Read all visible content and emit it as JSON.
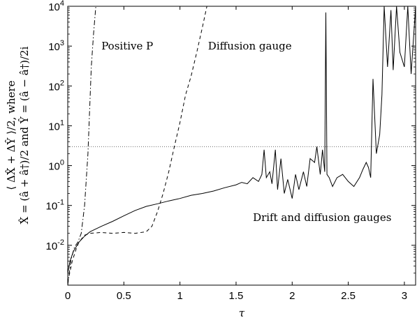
{
  "chart_data": {
    "type": "line",
    "title": "",
    "xlabel": "τ",
    "ylabel_line1": "⟨ ΔX̂ + ΔŶ ⟩/2, where",
    "ylabel_line2": "X̂ = (â + â†)/2 and Ŷ = (â − â†)/2i",
    "xlim": [
      0,
      3.1
    ],
    "ylim_log10": [
      -3,
      4
    ],
    "yscale": "log",
    "grid": false,
    "x_ticks": [
      {
        "value": 0,
        "label": "0"
      },
      {
        "value": 0.5,
        "label": "0.5"
      },
      {
        "value": 1,
        "label": "1"
      },
      {
        "value": 1.5,
        "label": "1.5"
      },
      {
        "value": 2,
        "label": "2"
      },
      {
        "value": 2.5,
        "label": "2.5"
      },
      {
        "value": 3,
        "label": "3"
      }
    ],
    "y_ticks": [
      {
        "exp": -2,
        "label_base": "10",
        "label_exp": "-2"
      },
      {
        "exp": -1,
        "label_base": "10",
        "label_exp": "-1"
      },
      {
        "exp": 0,
        "label_base": "10",
        "label_exp": "0"
      },
      {
        "exp": 1,
        "label_base": "10",
        "label_exp": "1"
      },
      {
        "exp": 2,
        "label_base": "10",
        "label_exp": "2"
      },
      {
        "exp": 3,
        "label_base": "10",
        "label_exp": "3"
      },
      {
        "exp": 4,
        "label_base": "10",
        "label_exp": "4"
      }
    ],
    "reference_line": {
      "y": 3,
      "style": "dotted"
    },
    "annotations": [
      {
        "text": "Positive P",
        "x": 0.3,
        "y": 1000
      },
      {
        "text": "Diffusion gauge",
        "x": 1.25,
        "y": 1000
      },
      {
        "text": "Drift and diffusion gauges",
        "x": 1.65,
        "y": 0.05
      }
    ],
    "series": [
      {
        "style": "dashdot",
        "x": [
          0.0,
          0.03,
          0.06,
          0.09,
          0.12,
          0.15,
          0.18,
          0.21,
          0.23,
          0.25
        ],
        "y": [
          0.001,
          0.0045,
          0.009,
          0.012,
          0.02,
          0.1,
          2,
          300,
          2000,
          10000
        ]
      },
      {
        "style": "dashed",
        "x": [
          0.0,
          0.04,
          0.08,
          0.1,
          0.15,
          0.2,
          0.3,
          0.4,
          0.5,
          0.6,
          0.7,
          0.75,
          0.8,
          0.85,
          0.9,
          0.95,
          1.0,
          1.05,
          1.1,
          1.15,
          1.2,
          1.24
        ],
        "y": [
          0.0012,
          0.004,
          0.009,
          0.012,
          0.018,
          0.02,
          0.021,
          0.02,
          0.021,
          0.02,
          0.022,
          0.03,
          0.07,
          0.2,
          0.7,
          3,
          12,
          60,
          180,
          700,
          3000,
          10000
        ]
      },
      {
        "style": "solid",
        "x": [
          0.0,
          0.02,
          0.05,
          0.1,
          0.15,
          0.2,
          0.3,
          0.4,
          0.5,
          0.6,
          0.7,
          0.8,
          0.9,
          1.0,
          1.1,
          1.2,
          1.3,
          1.4,
          1.5,
          1.55,
          1.6,
          1.65,
          1.7,
          1.73,
          1.75,
          1.77,
          1.8,
          1.82,
          1.85,
          1.87,
          1.9,
          1.93,
          1.96,
          2.0,
          2.03,
          2.06,
          2.1,
          2.13,
          2.16,
          2.2,
          2.22,
          2.25,
          2.27,
          2.29,
          2.3,
          2.31,
          2.33,
          2.36,
          2.4,
          2.45,
          2.5,
          2.55,
          2.6,
          2.63,
          2.66,
          2.68,
          2.7,
          2.72,
          2.75,
          2.78,
          2.8,
          2.82,
          2.85,
          2.88,
          2.9,
          2.93,
          2.96,
          3.0,
          3.03,
          3.06,
          3.1
        ],
        "y": [
          0.002,
          0.004,
          0.007,
          0.012,
          0.017,
          0.022,
          0.03,
          0.04,
          0.055,
          0.075,
          0.095,
          0.11,
          0.13,
          0.15,
          0.18,
          0.2,
          0.23,
          0.28,
          0.33,
          0.38,
          0.35,
          0.5,
          0.4,
          0.6,
          2.5,
          0.5,
          0.7,
          0.35,
          2.5,
          0.25,
          1.5,
          0.2,
          0.45,
          0.15,
          0.6,
          0.25,
          0.7,
          0.3,
          1.5,
          1.2,
          3,
          0.6,
          2.5,
          0.7,
          7000,
          0.6,
          0.5,
          0.3,
          0.5,
          0.6,
          0.4,
          0.3,
          0.5,
          0.8,
          1.2,
          0.9,
          0.5,
          150,
          2,
          6,
          60,
          10000,
          300,
          8000,
          250,
          10000,
          700,
          300,
          10000,
          200,
          10000
        ]
      }
    ]
  }
}
